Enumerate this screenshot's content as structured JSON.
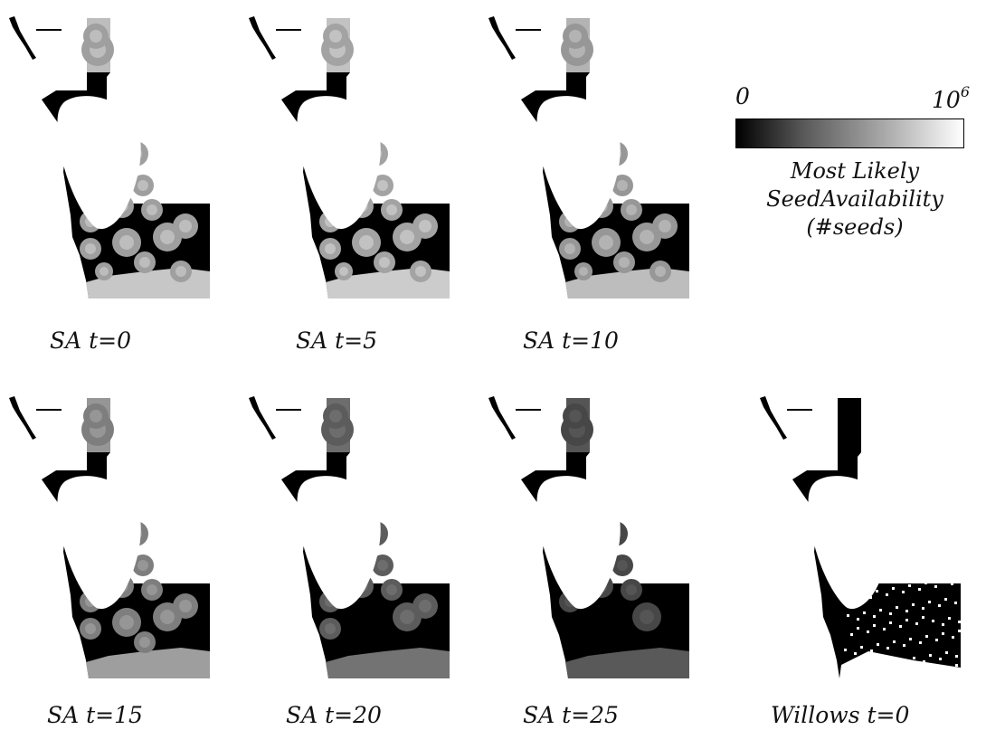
{
  "legend": {
    "min_label": "0",
    "max_base": "10",
    "max_exp": "6",
    "title_lines": [
      "Most Likely",
      "SeedAvailability",
      "(#seeds)"
    ],
    "gradient_colors": [
      "#000000",
      "#ffffff"
    ]
  },
  "panels": [
    {
      "caption": "SA t=0",
      "level": 0.78
    },
    {
      "caption": "SA t=5",
      "level": 0.8
    },
    {
      "caption": "SA t=10",
      "level": 0.74
    },
    {
      "caption": "SA t=15",
      "level": 0.62
    },
    {
      "caption": "SA t=20",
      "level": 0.45
    },
    {
      "caption": "SA t=25",
      "level": 0.35
    },
    {
      "caption": "Willows t=0",
      "level": 0.0
    }
  ]
}
